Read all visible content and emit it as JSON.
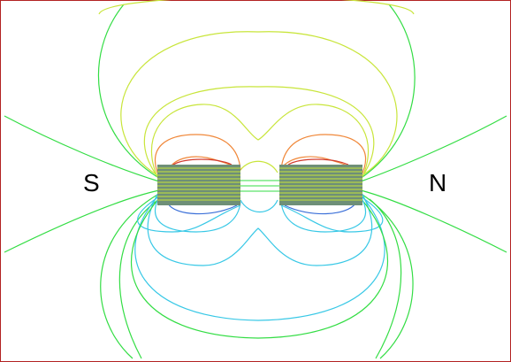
{
  "labels": {
    "south": "S",
    "north": "N"
  },
  "colors": {
    "border": "#b22222",
    "magnet_fill": "#6e8f78",
    "outer_field": "#33dd44",
    "mid_field": "#c8e53a",
    "inner_top": "#f0883a",
    "inner_top_core": "#d23a2e",
    "inner_bottom": "#38c8e6",
    "inner_bottom_core": "#3a6fd8"
  }
}
